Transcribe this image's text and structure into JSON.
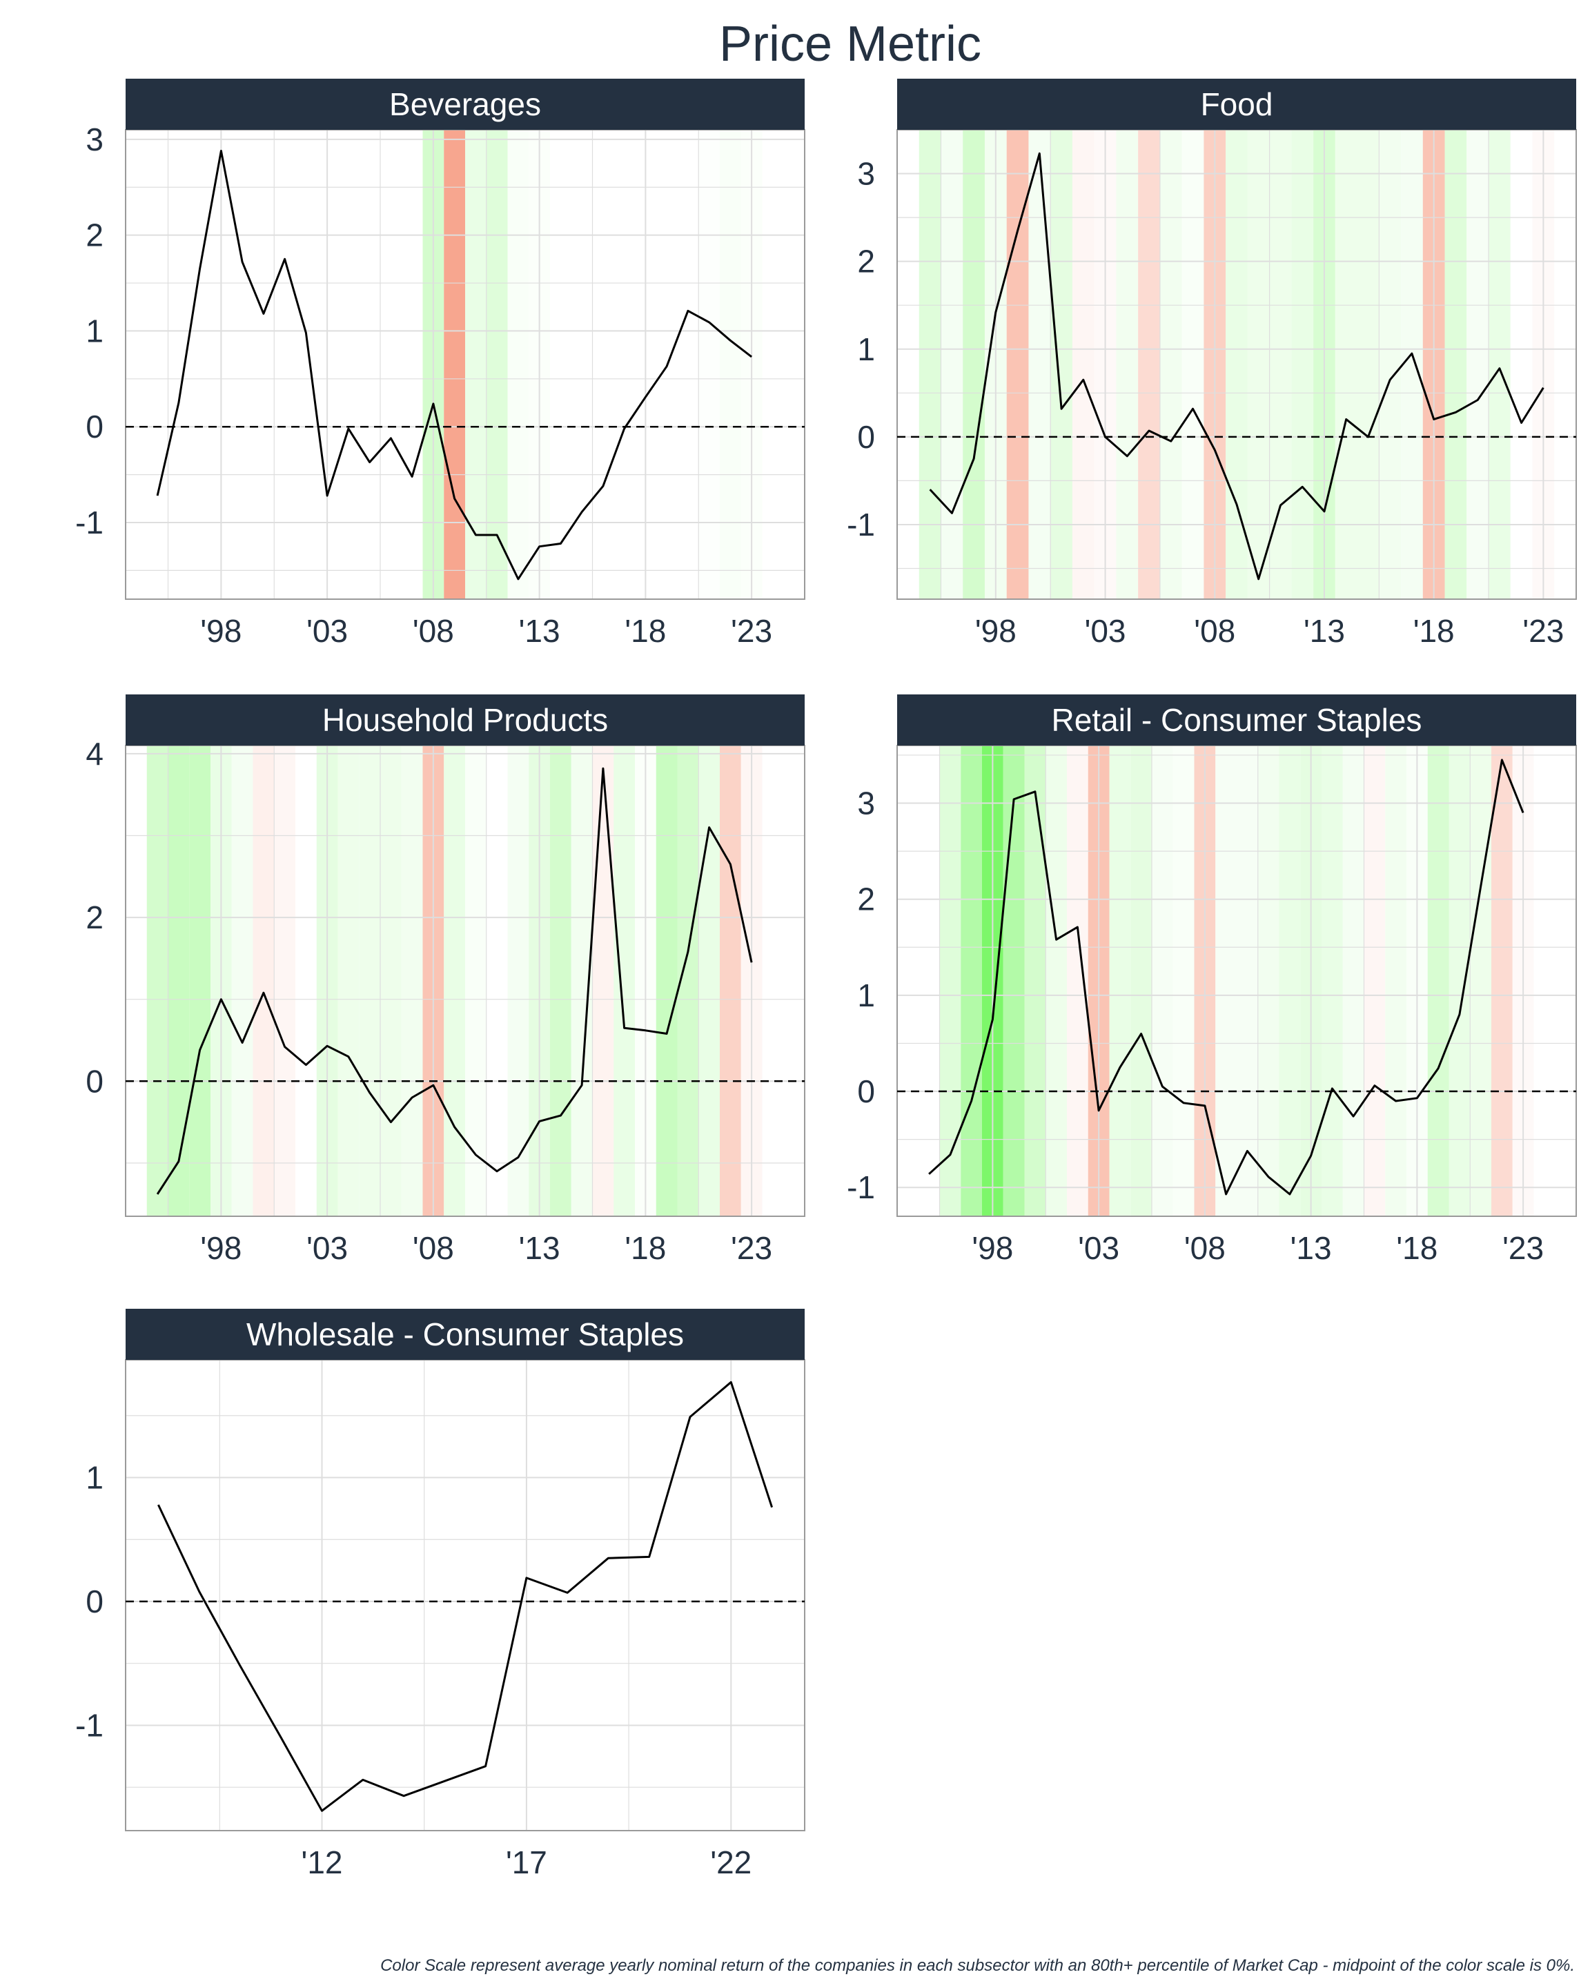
{
  "title": "Price Metric",
  "caption": "Color Scale represent average yearly nominal return of the companies in each subsector with an 80th+ percentile of Market Cap - midpoint of the color scale is 0%.",
  "colors": {
    "strip_bg": "#243141",
    "strip_text": "#ffffff",
    "text": "#243141",
    "line": "#000000",
    "grid": "#dedede",
    "panel_border": "#9a9a9a",
    "zero_line": "#000000",
    "positive": "#7df76a",
    "negative": "#f7a68f"
  },
  "chart_data": [
    {
      "type": "line",
      "name": "Beverages",
      "x_ticks": [
        1998,
        2003,
        2008,
        2013,
        2018,
        2023
      ],
      "x_tick_labels": [
        "'98",
        "'03",
        "'08",
        "'13",
        "'18",
        "'23"
      ],
      "xlim": [
        1993.5,
        2025.5
      ],
      "y_ticks": [
        -1,
        0,
        1,
        2,
        3
      ],
      "y_tick_labels": [
        "-1",
        "0",
        "1",
        "2",
        "3"
      ],
      "ylim": [
        -1.8,
        3.1
      ],
      "reference_line": 0,
      "x": [
        1995,
        1996,
        1997,
        1998,
        1999,
        2000,
        2001,
        2002,
        2003,
        2004,
        2005,
        2006,
        2007,
        2008,
        2009,
        2010,
        2011,
        2012,
        2013,
        2014,
        2015,
        2016,
        2017,
        2018,
        2019,
        2020,
        2021,
        2022,
        2023
      ],
      "y": [
        -0.72,
        0.25,
        1.65,
        2.88,
        1.72,
        1.18,
        1.75,
        0.98,
        -0.72,
        -0.02,
        -0.37,
        -0.12,
        -0.52,
        0.24,
        -0.75,
        -1.13,
        -1.13,
        -1.59,
        -1.25,
        -1.22,
        -0.89,
        -0.62,
        -0.02,
        0.31,
        0.63,
        1.21,
        1.09,
        0.9,
        0.73
      ],
      "background_years": [
        2008,
        2009,
        2010,
        2011,
        2012,
        2013,
        2014,
        2015,
        2016,
        2017,
        2018,
        2019,
        2020,
        2021,
        2022,
        2023
      ],
      "background_returns": [
        0.2,
        -0.3,
        0.1,
        0.15,
        0.03,
        0.02,
        0.0,
        0.0,
        0.0,
        0.0,
        0.0,
        0.0,
        0.0,
        0.01,
        0.03,
        0.02
      ]
    },
    {
      "type": "line",
      "name": "Food",
      "x_ticks": [
        1998,
        2003,
        2008,
        2013,
        2018,
        2023
      ],
      "x_tick_labels": [
        "'98",
        "'03",
        "'08",
        "'13",
        "'18",
        "'23"
      ],
      "xlim": [
        1993.5,
        2024.5
      ],
      "y_ticks": [
        -1,
        0,
        1,
        2,
        3
      ],
      "y_tick_labels": [
        "-1",
        "0",
        "1",
        "2",
        "3"
      ],
      "ylim": [
        -1.85,
        3.5
      ],
      "reference_line": 0,
      "x": [
        1995,
        1996,
        1997,
        1998,
        1999,
        2000,
        2001,
        2002,
        2003,
        2004,
        2005,
        2006,
        2007,
        2008,
        2009,
        2010,
        2011,
        2012,
        2013,
        2014,
        2015,
        2016,
        2017,
        2018,
        2019,
        2020,
        2021,
        2022,
        2023
      ],
      "y": [
        -0.6,
        -0.87,
        -0.25,
        1.42,
        2.35,
        3.23,
        0.32,
        0.65,
        0.0,
        -0.22,
        0.07,
        -0.05,
        0.32,
        -0.15,
        -0.77,
        -1.62,
        -0.78,
        -0.57,
        -0.85,
        0.2,
        0.0,
        0.65,
        0.95,
        0.2,
        0.28,
        0.42,
        0.78,
        0.16,
        0.56
      ],
      "background_years": [
        1995,
        1996,
        1997,
        1998,
        1999,
        2000,
        2001,
        2002,
        2003,
        2004,
        2005,
        2006,
        2007,
        2008,
        2009,
        2010,
        2011,
        2012,
        2013,
        2014,
        2015,
        2016,
        2017,
        2018,
        2019,
        2020,
        2021,
        2022,
        2023
      ],
      "background_returns": [
        0.15,
        0.05,
        0.2,
        0.06,
        -0.2,
        0.05,
        0.12,
        -0.03,
        -0.02,
        0.06,
        -0.12,
        0.06,
        0.03,
        -0.16,
        0.1,
        0.08,
        0.08,
        0.1,
        0.18,
        0.08,
        0.08,
        0.06,
        0.05,
        -0.2,
        0.15,
        0.04,
        0.1,
        0.0,
        -0.02
      ]
    },
    {
      "type": "line",
      "name": "Household Products",
      "x_ticks": [
        1998,
        2003,
        2008,
        2013,
        2018,
        2023
      ],
      "x_tick_labels": [
        "'98",
        "'03",
        "'08",
        "'13",
        "'18",
        "'23"
      ],
      "xlim": [
        1993.5,
        2025.5
      ],
      "y_ticks": [
        0,
        2,
        4
      ],
      "y_tick_labels": [
        "0",
        "2",
        "4"
      ],
      "ylim": [
        -1.65,
        4.1
      ],
      "reference_line": 0,
      "x": [
        1995,
        1996,
        1997,
        1998,
        1999,
        2000,
        2001,
        2002,
        2003,
        2004,
        2005,
        2006,
        2007,
        2008,
        2009,
        2010,
        2011,
        2012,
        2013,
        2014,
        2015,
        2016,
        2017,
        2018,
        2019,
        2020,
        2021,
        2022,
        2023
      ],
      "y": [
        -1.38,
        -0.98,
        0.38,
        1.0,
        0.47,
        1.08,
        0.42,
        0.2,
        0.43,
        0.3,
        -0.14,
        -0.5,
        -0.2,
        -0.05,
        -0.56,
        -0.9,
        -1.1,
        -0.93,
        -0.49,
        -0.42,
        -0.05,
        3.82,
        0.65,
        0.62,
        0.58,
        1.58,
        3.1,
        2.65,
        1.45
      ],
      "background_years": [
        1995,
        1996,
        1997,
        1998,
        1999,
        2000,
        2001,
        2002,
        2003,
        2004,
        2005,
        2006,
        2007,
        2008,
        2009,
        2010,
        2011,
        2012,
        2013,
        2014,
        2015,
        2016,
        2017,
        2018,
        2019,
        2020,
        2021,
        2022,
        2023,
        2024
      ],
      "background_returns": [
        0.2,
        0.25,
        0.25,
        0.1,
        0.05,
        -0.05,
        -0.03,
        0.0,
        0.12,
        0.08,
        0.08,
        0.08,
        0.06,
        -0.2,
        0.1,
        0.03,
        0.0,
        0.05,
        0.12,
        0.2,
        0.06,
        -0.04,
        0.1,
        0.02,
        0.25,
        0.2,
        0.1,
        -0.15,
        -0.03,
        0.0
      ]
    },
    {
      "type": "line",
      "name": "Retail - Consumer Staples",
      "x_ticks": [
        1998,
        2003,
        2008,
        2013,
        2018,
        2023
      ],
      "x_tick_labels": [
        "'98",
        "'03",
        "'08",
        "'13",
        "'18",
        "'23"
      ],
      "xlim": [
        1993.5,
        2025.5
      ],
      "y_ticks": [
        -1,
        0,
        1,
        2,
        3
      ],
      "y_tick_labels": [
        "-1",
        "0",
        "1",
        "2",
        "3"
      ],
      "ylim": [
        -1.3,
        3.6
      ],
      "reference_line": 0,
      "x": [
        1995,
        1996,
        1997,
        1998,
        1999,
        2000,
        2001,
        2002,
        2003,
        2004,
        2005,
        2006,
        2007,
        2008,
        2009,
        2010,
        2011,
        2012,
        2013,
        2014,
        2015,
        2016,
        2017,
        2018,
        2019,
        2020,
        2021,
        2022,
        2023
      ],
      "y": [
        -0.86,
        -0.66,
        -0.1,
        0.75,
        3.04,
        3.12,
        1.58,
        1.71,
        -0.2,
        0.25,
        0.6,
        0.05,
        -0.12,
        -0.15,
        -1.07,
        -0.62,
        -0.89,
        -1.07,
        -0.67,
        0.03,
        -0.26,
        0.06,
        -0.1,
        -0.07,
        0.24,
        0.8,
        2.13,
        3.45,
        2.9
      ],
      "background_years": [
        1995,
        1996,
        1997,
        1998,
        1999,
        2000,
        2001,
        2002,
        2003,
        2004,
        2005,
        2006,
        2007,
        2008,
        2009,
        2010,
        2011,
        2012,
        2013,
        2014,
        2015,
        2016,
        2017,
        2018,
        2019,
        2020,
        2021,
        2022,
        2023
      ],
      "background_returns": [
        0.0,
        0.15,
        0.35,
        0.6,
        0.35,
        0.2,
        0.08,
        -0.03,
        -0.2,
        0.1,
        0.12,
        0.04,
        0.03,
        -0.15,
        0.04,
        0.04,
        0.06,
        0.1,
        0.12,
        0.1,
        0.05,
        -0.03,
        0.06,
        0.03,
        0.18,
        0.1,
        0.08,
        -0.12,
        -0.02
      ]
    },
    {
      "type": "line",
      "name": "Wholesale - Consumer Staples",
      "x_ticks": [
        2012,
        2017,
        2022
      ],
      "x_tick_labels": [
        "'12",
        "'17",
        "'22"
      ],
      "xlim": [
        2007.2,
        2023.8
      ],
      "y_ticks": [
        -1,
        0,
        1
      ],
      "y_tick_labels": [
        "-1",
        "0",
        "1"
      ],
      "ylim": [
        -1.85,
        1.95
      ],
      "reference_line": 0,
      "x": [
        2008,
        2009,
        2010,
        2011,
        2012,
        2013,
        2014,
        2015,
        2016,
        2017,
        2018,
        2019,
        2020,
        2021,
        2022,
        2023
      ],
      "y": [
        0.78,
        0.08,
        -0.52,
        -1.1,
        -1.69,
        -1.44,
        -1.57,
        -1.45,
        -1.33,
        0.19,
        0.07,
        0.35,
        0.36,
        1.49,
        1.77,
        0.76
      ],
      "background_years": [],
      "background_returns": []
    }
  ]
}
